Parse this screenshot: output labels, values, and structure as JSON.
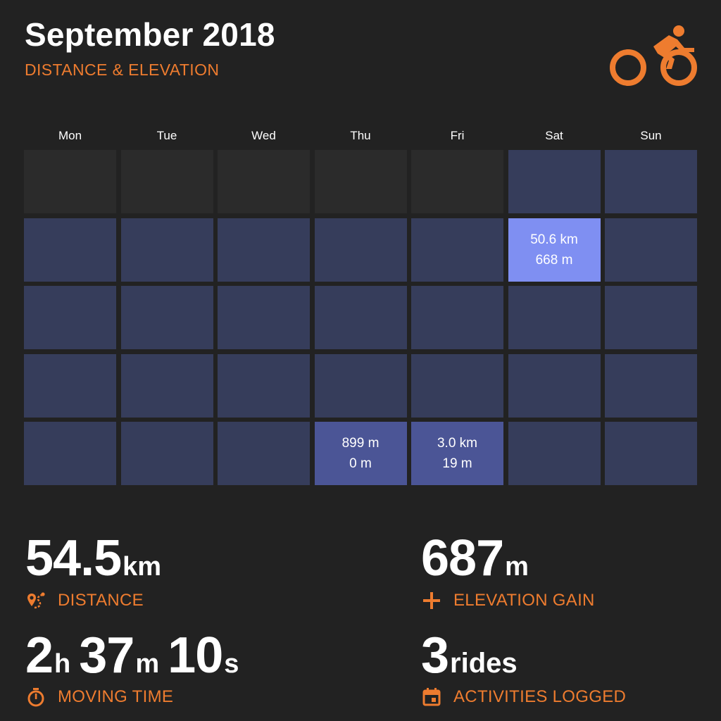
{
  "header": {
    "title": "September 2018",
    "subtitle": "DISTANCE & ELEVATION"
  },
  "icons": {
    "logo": "cyclist-icon",
    "distance": "route-pin-icon",
    "elevation": "plus-icon",
    "time": "stopwatch-icon",
    "activities": "calendar-icon"
  },
  "colors": {
    "accent": "#ee7c2f",
    "background": "#222222",
    "cell_default": "#363d5b",
    "cell_empty": "#2b2b2b",
    "cell_high": "#7f8ff2",
    "cell_mid": "#4b5596"
  },
  "calendar": {
    "weekdays": [
      "Mon",
      "Tue",
      "Wed",
      "Thu",
      "Fri",
      "Sat",
      "Sun"
    ],
    "weeks": [
      [
        {
          "state": "empty",
          "lines": []
        },
        {
          "state": "empty",
          "lines": []
        },
        {
          "state": "empty",
          "lines": []
        },
        {
          "state": "empty",
          "lines": []
        },
        {
          "state": "empty",
          "lines": []
        },
        {
          "state": "day",
          "lines": []
        },
        {
          "state": "day",
          "lines": []
        }
      ],
      [
        {
          "state": "day",
          "lines": []
        },
        {
          "state": "day",
          "lines": []
        },
        {
          "state": "day",
          "lines": []
        },
        {
          "state": "day",
          "lines": []
        },
        {
          "state": "day",
          "lines": []
        },
        {
          "state": "act-high",
          "lines": [
            "50.6 km",
            "668 m"
          ]
        },
        {
          "state": "day",
          "lines": []
        }
      ],
      [
        {
          "state": "day",
          "lines": []
        },
        {
          "state": "day",
          "lines": []
        },
        {
          "state": "day",
          "lines": []
        },
        {
          "state": "day",
          "lines": []
        },
        {
          "state": "day",
          "lines": []
        },
        {
          "state": "day",
          "lines": []
        },
        {
          "state": "day",
          "lines": []
        }
      ],
      [
        {
          "state": "day",
          "lines": []
        },
        {
          "state": "day",
          "lines": []
        },
        {
          "state": "day",
          "lines": []
        },
        {
          "state": "day",
          "lines": []
        },
        {
          "state": "day",
          "lines": []
        },
        {
          "state": "day",
          "lines": []
        },
        {
          "state": "day",
          "lines": []
        }
      ],
      [
        {
          "state": "day",
          "lines": []
        },
        {
          "state": "day",
          "lines": []
        },
        {
          "state": "day",
          "lines": []
        },
        {
          "state": "act-mid",
          "lines": [
            "899 m",
            "0 m"
          ]
        },
        {
          "state": "act-mid",
          "lines": [
            "3.0 km",
            "19 m"
          ]
        },
        {
          "state": "day",
          "lines": []
        },
        {
          "state": "day",
          "lines": []
        }
      ]
    ]
  },
  "stats": {
    "distance": {
      "value": "54.5",
      "unit": "km",
      "label": "DISTANCE"
    },
    "elevation": {
      "value": "687",
      "unit": "m",
      "label": "ELEVATION GAIN"
    },
    "time": {
      "hours": "2",
      "hours_unit": "h",
      "minutes": "37",
      "minutes_unit": "m",
      "seconds": "10",
      "seconds_unit": "s",
      "label": "MOVING TIME"
    },
    "activities": {
      "value": "3",
      "unit": "rides",
      "label": "ACTIVITIES LOGGED"
    }
  }
}
